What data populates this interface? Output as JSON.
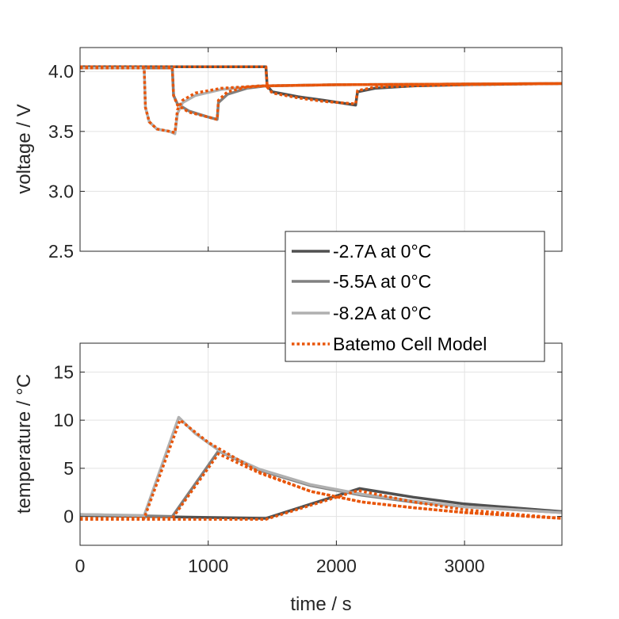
{
  "chart_data": [
    {
      "type": "line",
      "title": "",
      "xlabel": "",
      "ylabel": "voltage / V",
      "xlim": [
        0,
        3760
      ],
      "ylim": [
        2.5,
        4.2
      ],
      "yticks": [
        2.5,
        3.0,
        3.5,
        4.0
      ],
      "ytick_labels": [
        "2.5",
        "3.0",
        "3.5",
        "4.0"
      ],
      "xticks": [
        0,
        1000,
        2000,
        3000
      ],
      "grid": true,
      "series": [
        {
          "name": "-2.7A at 0°C",
          "color": "#505050",
          "style": "solid",
          "x": [
            0,
            1450,
            1460,
            1500,
            1700,
            1900,
            2150,
            2165,
            2300,
            2600,
            3000,
            3760
          ],
          "y": [
            4.04,
            4.04,
            3.88,
            3.83,
            3.79,
            3.76,
            3.72,
            3.83,
            3.86,
            3.88,
            3.89,
            3.9
          ]
        },
        {
          "name": "-5.5A at 0°C",
          "color": "#808080",
          "style": "solid",
          "x": [
            0,
            720,
            730,
            760,
            850,
            1000,
            1070,
            1080,
            1150,
            1300,
            1450,
            2000,
            3760
          ],
          "y": [
            4.03,
            4.03,
            3.8,
            3.73,
            3.67,
            3.62,
            3.6,
            3.74,
            3.81,
            3.86,
            3.88,
            3.89,
            3.9
          ]
        },
        {
          "name": "-8.2A at 0°C",
          "color": "#b0b0b0",
          "style": "solid",
          "x": [
            0,
            500,
            510,
            540,
            600,
            700,
            740,
            760,
            800,
            900,
            1100,
            1400,
            2000,
            3760
          ],
          "y": [
            4.03,
            4.03,
            3.7,
            3.58,
            3.52,
            3.5,
            3.48,
            3.65,
            3.74,
            3.8,
            3.85,
            3.88,
            3.89,
            3.9
          ]
        },
        {
          "name": "Batemo Cell Model",
          "color": "#e8550a",
          "style": "dotted",
          "x": [
            0,
            1450,
            1460,
            1500,
            1700,
            1900,
            2150,
            2165,
            2300,
            2600,
            3000,
            3760
          ],
          "y": [
            4.04,
            4.04,
            3.87,
            3.82,
            3.78,
            3.75,
            3.73,
            3.84,
            3.87,
            3.88,
            3.89,
            3.9
          ]
        },
        {
          "name": "Batemo Cell Model",
          "color": "#e8550a",
          "style": "dotted",
          "x": [
            0,
            720,
            730,
            760,
            850,
            1000,
            1070,
            1080,
            1150,
            1300,
            1450,
            2000,
            3760
          ],
          "y": [
            4.03,
            4.03,
            3.8,
            3.72,
            3.66,
            3.62,
            3.6,
            3.76,
            3.83,
            3.87,
            3.88,
            3.89,
            3.9
          ]
        },
        {
          "name": "Batemo Cell Model",
          "color": "#e8550a",
          "style": "dotted",
          "x": [
            0,
            500,
            510,
            540,
            600,
            700,
            740,
            760,
            800,
            900,
            1100,
            1400,
            2000,
            3760
          ],
          "y": [
            4.03,
            4.03,
            3.7,
            3.58,
            3.52,
            3.5,
            3.49,
            3.68,
            3.76,
            3.82,
            3.86,
            3.88,
            3.89,
            3.9
          ]
        }
      ]
    },
    {
      "type": "line",
      "title": "",
      "xlabel": "time / s",
      "ylabel": "temperature / °C",
      "xlim": [
        0,
        3760
      ],
      "ylim": [
        -3,
        18
      ],
      "yticks": [
        0,
        5,
        10,
        15
      ],
      "ytick_labels": [
        "0",
        "5",
        "10",
        "15"
      ],
      "xticks": [
        0,
        1000,
        2000,
        3000
      ],
      "xtick_labels": [
        "0",
        "1000",
        "2000",
        "3000"
      ],
      "grid": true,
      "series": [
        {
          "name": "-2.7A at 0°C",
          "color": "#505050",
          "style": "solid",
          "x": [
            0,
            1450,
            2180,
            2600,
            3000,
            3760
          ],
          "y": [
            0.1,
            -0.2,
            2.9,
            2.0,
            1.3,
            0.5
          ]
        },
        {
          "name": "-5.5A at 0°C",
          "color": "#808080",
          "style": "solid",
          "x": [
            0,
            720,
            1080,
            1400,
            1800,
            2200,
            2600,
            3000,
            3760
          ],
          "y": [
            0.2,
            0.0,
            6.8,
            4.8,
            3.2,
            2.2,
            1.5,
            1.0,
            0.4
          ]
        },
        {
          "name": "-8.2A at 0°C",
          "color": "#b0b0b0",
          "style": "solid",
          "x": [
            0,
            500,
            770,
            900,
            1100,
            1400,
            1800,
            2200,
            2600,
            3000,
            3760
          ],
          "y": [
            0.2,
            0.1,
            10.3,
            8.6,
            6.7,
            4.9,
            3.3,
            2.3,
            1.6,
            1.0,
            0.4
          ]
        },
        {
          "name": "Batemo Cell Model",
          "color": "#e8550a",
          "style": "dotted",
          "x": [
            0,
            1450,
            2170,
            2600,
            3000,
            3760
          ],
          "y": [
            -0.3,
            -0.3,
            2.7,
            1.5,
            0.7,
            -0.2
          ]
        },
        {
          "name": "Batemo Cell Model",
          "color": "#e8550a",
          "style": "dotted",
          "x": [
            0,
            720,
            1080,
            1400,
            1800,
            2200,
            2600,
            3000,
            3760
          ],
          "y": [
            -0.2,
            -0.2,
            6.5,
            4.5,
            2.6,
            1.5,
            0.9,
            0.4,
            -0.2
          ]
        },
        {
          "name": "Batemo Cell Model",
          "color": "#e8550a",
          "style": "dotted",
          "x": [
            0,
            500,
            780,
            1000,
            1400,
            1800,
            2200,
            2600,
            3000,
            3760
          ],
          "y": [
            -0.2,
            -0.2,
            10.0,
            7.7,
            4.6,
            2.6,
            1.5,
            0.9,
            0.4,
            -0.2
          ]
        }
      ]
    }
  ],
  "legend": {
    "placement": "center-right",
    "entries": [
      "-2.7A at 0°C",
      "-5.5A at 0°C",
      "-8.2A at 0°C",
      "Batemo Cell Model"
    ]
  }
}
